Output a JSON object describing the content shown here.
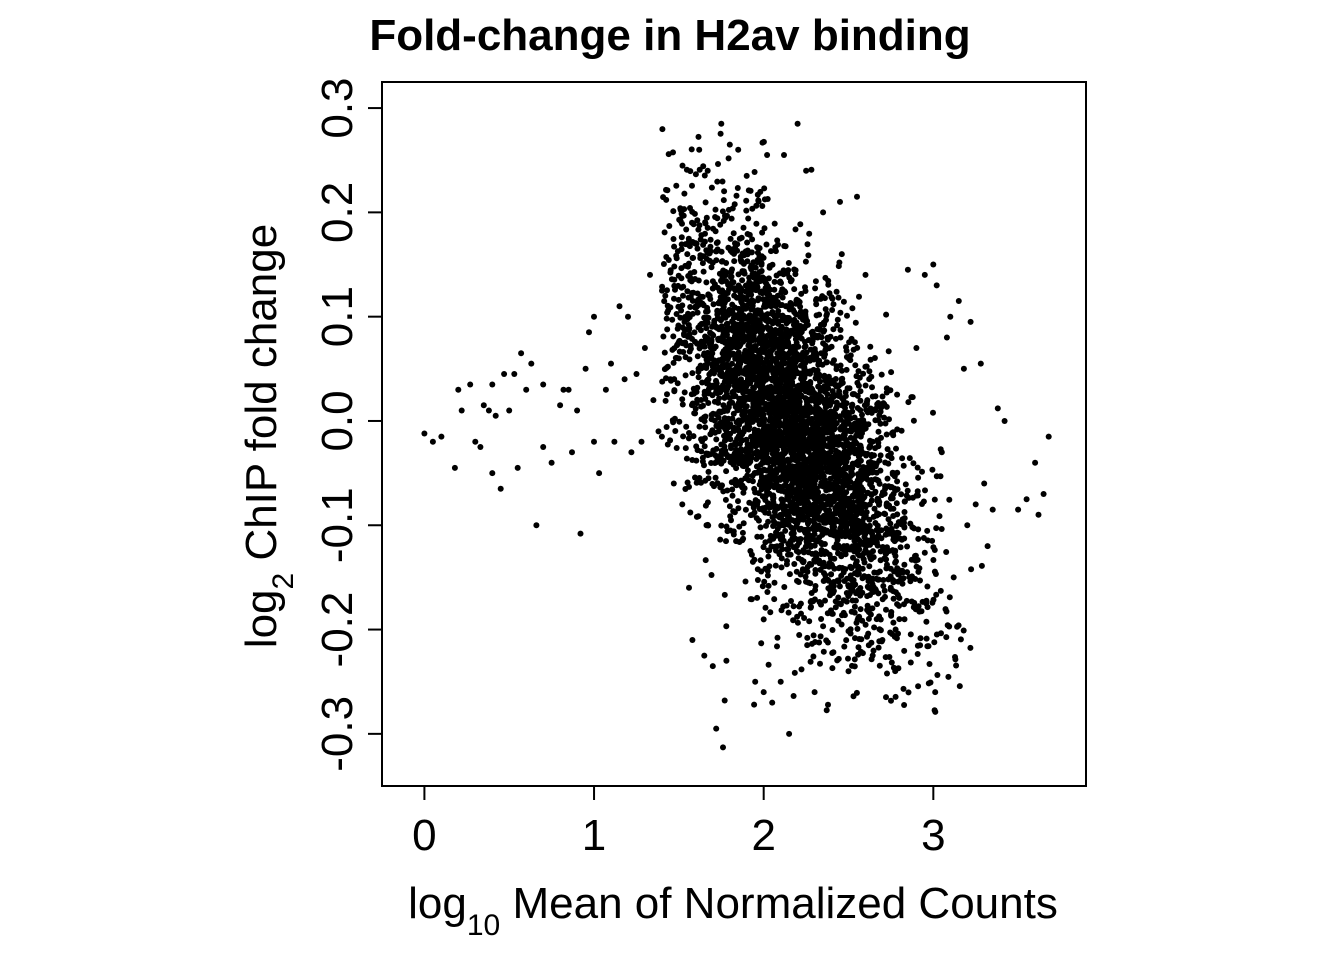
{
  "chart_data": {
    "type": "scatter",
    "title": "Fold-change in H2av binding",
    "xlabel": {
      "prefix": "log",
      "sub": "10",
      "rest": " Mean of Normalized Counts"
    },
    "ylabel": {
      "prefix": "log",
      "sub": "2",
      "rest": " ChIP fold change"
    },
    "xlim": [
      -0.25,
      3.9
    ],
    "ylim": [
      -0.35,
      0.325
    ],
    "x_ticks": [
      0,
      1,
      2,
      3
    ],
    "x_tick_labels": [
      "0",
      "1",
      "2",
      "3"
    ],
    "y_ticks": [
      -0.3,
      -0.2,
      -0.1,
      0.0,
      0.1,
      0.2,
      0.3
    ],
    "y_tick_labels": [
      "-0.3",
      "-0.2",
      "-0.1",
      "0.0",
      "0.1",
      "0.2",
      "0.3"
    ],
    "grid": false,
    "legend": "none",
    "marker_color": "#000000",
    "points": [
      [
        0.0,
        -0.012
      ],
      [
        0.05,
        -0.02
      ],
      [
        0.1,
        -0.015
      ],
      [
        0.18,
        -0.045
      ],
      [
        0.2,
        0.03
      ],
      [
        0.22,
        0.01
      ],
      [
        0.27,
        0.035
      ],
      [
        0.3,
        -0.02
      ],
      [
        0.33,
        -0.025
      ],
      [
        0.35,
        0.015
      ],
      [
        0.38,
        0.01
      ],
      [
        0.4,
        -0.05
      ],
      [
        0.4,
        0.035
      ],
      [
        0.42,
        0.005
      ],
      [
        0.45,
        -0.065
      ],
      [
        0.47,
        0.045
      ],
      [
        0.5,
        0.01
      ],
      [
        0.53,
        0.045
      ],
      [
        0.55,
        -0.045
      ],
      [
        0.57,
        0.065
      ],
      [
        0.6,
        0.03
      ],
      [
        0.63,
        0.055
      ],
      [
        0.66,
        -0.1
      ],
      [
        0.7,
        0.035
      ],
      [
        0.7,
        -0.025
      ],
      [
        0.75,
        -0.04
      ],
      [
        0.8,
        0.015
      ],
      [
        0.82,
        0.03
      ],
      [
        0.85,
        0.03
      ],
      [
        0.87,
        -0.03
      ],
      [
        0.9,
        0.01
      ],
      [
        0.92,
        -0.108
      ],
      [
        0.95,
        0.05
      ],
      [
        0.97,
        0.085
      ],
      [
        1.0,
        0.1
      ],
      [
        1.0,
        -0.02
      ],
      [
        1.03,
        -0.05
      ],
      [
        1.07,
        0.03
      ],
      [
        1.1,
        0.055
      ],
      [
        1.12,
        -0.02
      ],
      [
        1.15,
        0.11
      ],
      [
        1.18,
        0.04
      ],
      [
        1.2,
        0.1
      ],
      [
        1.22,
        -0.03
      ],
      [
        1.25,
        0.045
      ],
      [
        1.28,
        -0.02
      ],
      [
        1.3,
        0.07
      ],
      [
        1.33,
        0.14
      ],
      [
        1.35,
        0.02
      ],
      [
        1.38,
        -0.01
      ],
      [
        1.4,
        -0.015
      ],
      [
        1.42,
        0.12
      ],
      [
        1.45,
        0.04
      ],
      [
        1.47,
        -0.06
      ],
      [
        1.5,
        0.06
      ],
      [
        1.52,
        -0.08
      ],
      [
        1.55,
        0.16
      ],
      [
        1.56,
        -0.16
      ],
      [
        1.58,
        -0.21
      ],
      [
        1.6,
        0.11
      ],
      [
        1.62,
        0.26
      ],
      [
        1.65,
        -0.225
      ],
      [
        1.67,
        0.24
      ],
      [
        1.7,
        -0.235
      ],
      [
        1.72,
        -0.295
      ],
      [
        1.75,
        0.285
      ],
      [
        1.76,
        -0.313
      ],
      [
        1.77,
        -0.268
      ],
      [
        1.78,
        -0.23
      ],
      [
        1.8,
        0.265
      ],
      [
        1.85,
        0.26
      ],
      [
        1.9,
        0.235
      ],
      [
        1.95,
        -0.25
      ],
      [
        2.0,
        -0.26
      ],
      [
        2.02,
        0.255
      ],
      [
        2.05,
        -0.27
      ],
      [
        2.1,
        -0.25
      ],
      [
        2.12,
        0.255
      ],
      [
        2.15,
        -0.3
      ],
      [
        2.2,
        0.285
      ],
      [
        2.25,
        0.24
      ],
      [
        2.3,
        -0.26
      ],
      [
        2.35,
        0.2
      ],
      [
        2.45,
        0.21
      ],
      [
        2.5,
        -0.24
      ],
      [
        2.55,
        0.215
      ],
      [
        2.6,
        0.14
      ],
      [
        2.7,
        -0.21
      ],
      [
        2.8,
        -0.19
      ],
      [
        2.85,
        0.145
      ],
      [
        2.9,
        0.07
      ],
      [
        2.95,
        0.14
      ],
      [
        3.0,
        0.15
      ],
      [
        3.02,
        0.13
      ],
      [
        3.05,
        -0.03
      ],
      [
        3.08,
        0.08
      ],
      [
        3.1,
        0.1
      ],
      [
        3.12,
        -0.15
      ],
      [
        3.15,
        0.115
      ],
      [
        3.18,
        0.05
      ],
      [
        3.2,
        -0.1
      ],
      [
        3.22,
        0.095
      ],
      [
        3.25,
        -0.08
      ],
      [
        3.28,
        0.055
      ],
      [
        3.3,
        -0.06
      ],
      [
        3.32,
        -0.12
      ],
      [
        3.35,
        -0.085
      ],
      [
        3.38,
        0.012
      ],
      [
        3.42,
        0.0
      ],
      [
        3.5,
        -0.085
      ],
      [
        3.55,
        -0.075
      ],
      [
        3.6,
        -0.04
      ],
      [
        3.62,
        -0.09
      ],
      [
        3.65,
        -0.07
      ],
      [
        3.68,
        -0.015
      ]
    ]
  }
}
